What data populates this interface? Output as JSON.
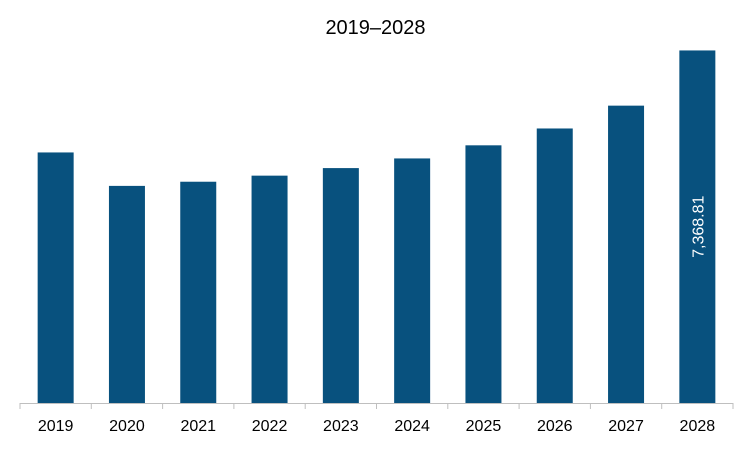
{
  "chart_data": {
    "type": "bar",
    "title": "2019–2028",
    "xlabel": "",
    "ylabel": "",
    "categories": [
      "2019",
      "2020",
      "2021",
      "2022",
      "2023",
      "2024",
      "2025",
      "2026",
      "2027",
      "2028"
    ],
    "values": [
      5237,
      4538,
      4625,
      4752,
      4910,
      5112,
      5386,
      5738,
      6215,
      7368.81
    ],
    "data_labels": [
      {
        "category": "2028",
        "text": "7,368.81"
      }
    ],
    "ylim": [
      0,
      7650
    ],
    "grid": false,
    "legend": "none",
    "bar_color": "#08517e",
    "axis_color": "#bfbfbf"
  }
}
